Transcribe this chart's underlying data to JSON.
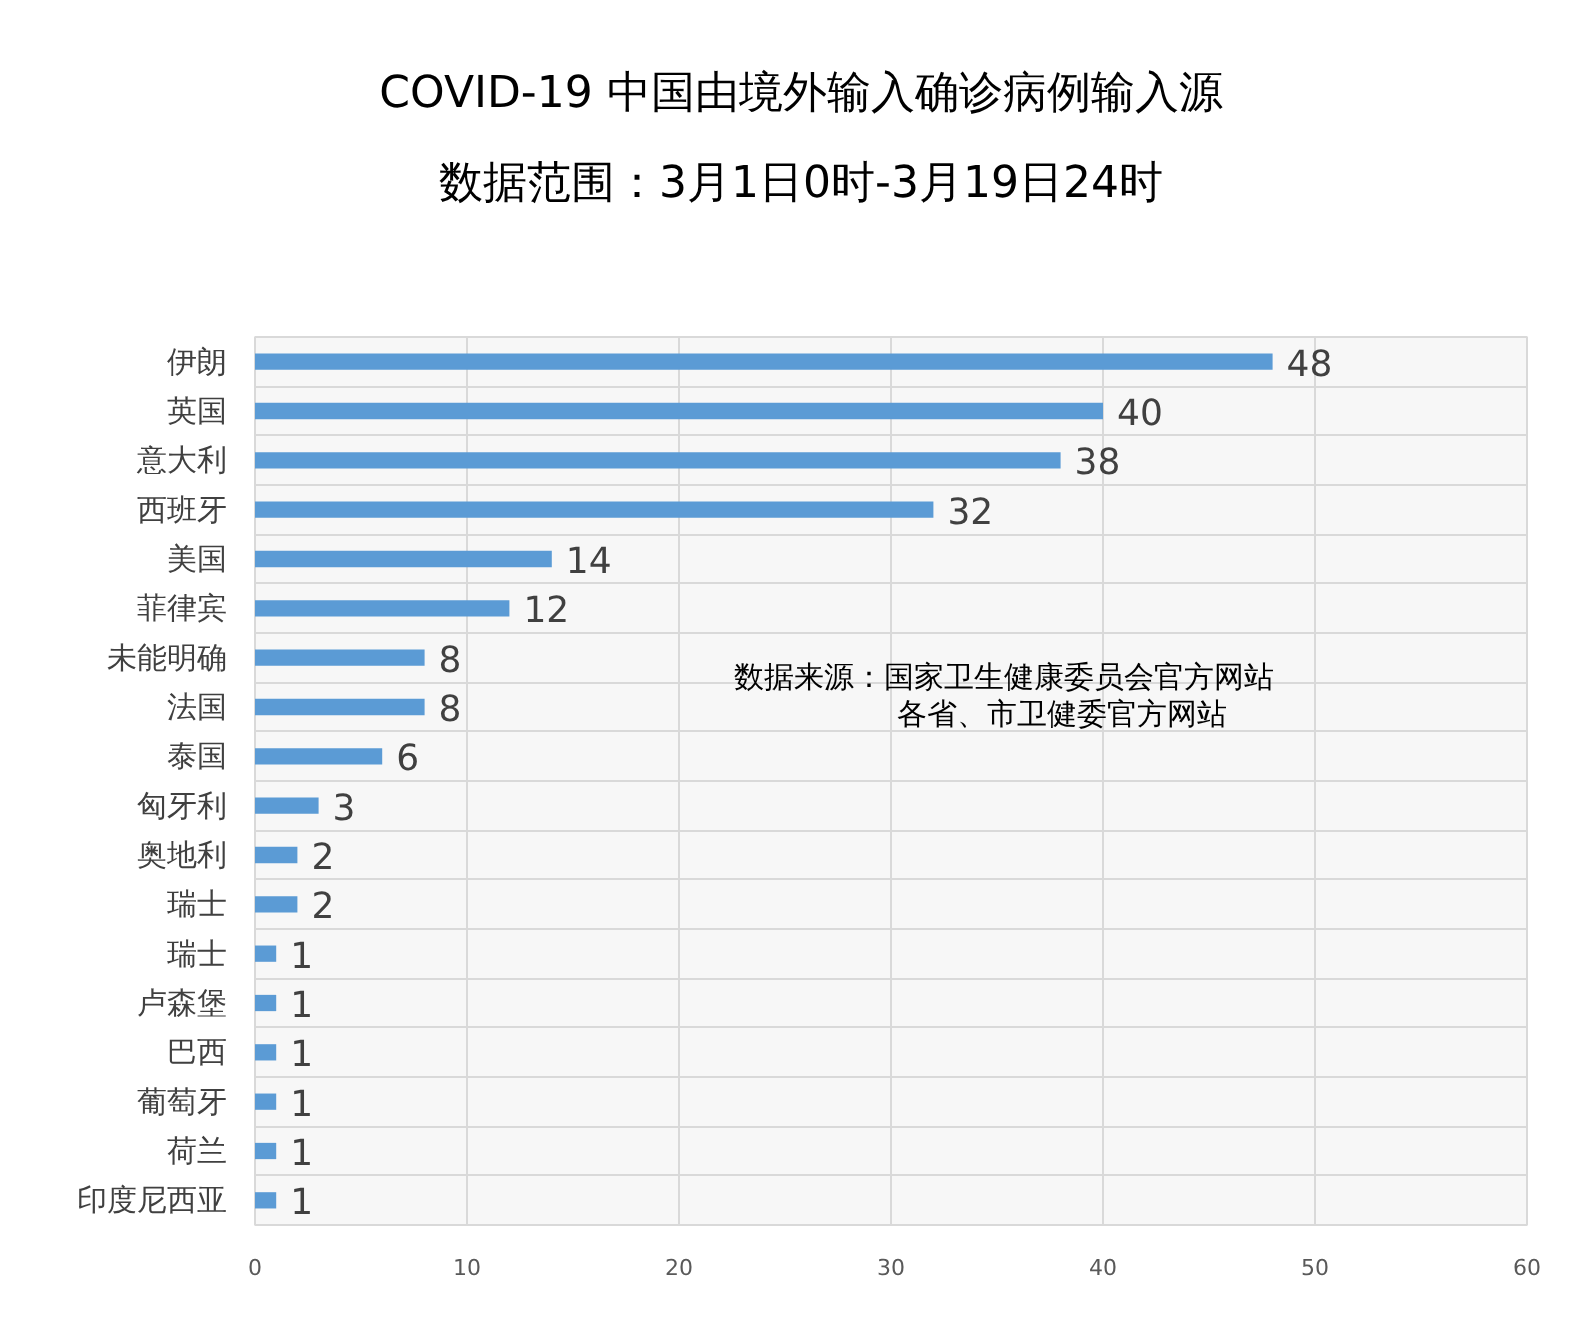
{
  "chart_data": {
    "type": "bar",
    "orientation": "horizontal",
    "title": "COVID-19 中国由境外输入确诊病例输入源",
    "subtitle": "数据范围：3月1日0时-3月19日24时",
    "categories": [
      "伊朗",
      "英国",
      "意大利",
      "西班牙",
      "美国",
      "菲律宾",
      "未能明确",
      "法国",
      "泰国",
      "匈牙利",
      "奥地利",
      "瑞士",
      "瑞士",
      "卢森堡",
      "巴西",
      "葡萄牙",
      "荷兰",
      "印度尼西亚"
    ],
    "values": [
      48,
      40,
      38,
      32,
      14,
      12,
      8,
      8,
      6,
      3,
      2,
      2,
      1,
      1,
      1,
      1,
      1,
      1
    ],
    "color": "#5b9bd5",
    "xlim": [
      0,
      60
    ],
    "xticks": [
      0,
      10,
      20,
      30,
      40,
      50,
      60
    ],
    "grid": true,
    "data_labels": true,
    "annotations": [
      "数据来源：国家卫生健康委员会官方网站",
      "各省、市卫健委官方网站"
    ]
  }
}
